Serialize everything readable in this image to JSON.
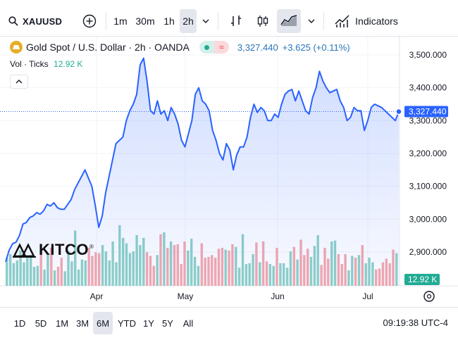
{
  "toolbar": {
    "symbol": "XAUUSD",
    "intervals": [
      "1m",
      "30m",
      "1h",
      "2h"
    ],
    "active_interval": "2h",
    "indicators_label": "Indicators"
  },
  "legend": {
    "title": "Gold Spot / U.S. Dollar · 2h · OANDA",
    "price": "3,327.440",
    "change": "+3.625 (+0.11%)"
  },
  "volume": {
    "label": "Vol · Ticks",
    "value": "12.92 K"
  },
  "logo_text": "KITCO",
  "ranges": [
    "1D",
    "5D",
    "1M",
    "3M",
    "6M",
    "YTD",
    "1Y",
    "5Y",
    "All"
  ],
  "active_range": "6M",
  "clock": "09:19:38 UTC-4",
  "colors": {
    "line": "#2962ff",
    "up_volume": "#8fd1c7",
    "down_volume": "#f6a8ae",
    "accent": "#2a74ba"
  },
  "chart_data": {
    "type": "area",
    "series": [
      {
        "values": [
          2870,
          2905,
          2925,
          2930,
          2950,
          2985,
          2990,
          3005,
          3010,
          3020,
          3015,
          3025,
          3045,
          3040,
          3050,
          3035,
          3030,
          3030,
          3045,
          3060,
          3090,
          3110,
          3130,
          3150,
          3125,
          3100,
          3040,
          2975,
          3010,
          3080,
          3130,
          3180,
          3230,
          3240,
          3250,
          3300,
          3330,
          3350,
          3380,
          3470,
          3490,
          3420,
          3330,
          3320,
          3360,
          3320,
          3330,
          3300,
          3340,
          3320,
          3290,
          3240,
          3220,
          3260,
          3300,
          3380,
          3400,
          3360,
          3350,
          3330,
          3270,
          3240,
          3200,
          3180,
          3230,
          3210,
          3150,
          3195,
          3220,
          3220,
          3250,
          3310,
          3350,
          3325,
          3340,
          3330,
          3300,
          3300,
          3320,
          3310,
          3350,
          3380,
          3390,
          3395,
          3360,
          3390,
          3360,
          3330,
          3320,
          3370,
          3400,
          3450,
          3420,
          3400,
          3385,
          3390,
          3395,
          3360,
          3340,
          3300,
          3310,
          3340,
          3330,
          3330,
          3270,
          3300,
          3340,
          3350,
          3345,
          3340,
          3330,
          3320,
          3310,
          3300,
          3327.44
        ]
      }
    ],
    "x_ticks": [
      "Apr",
      "May",
      "Jun",
      "Jul"
    ],
    "y_ticks": [
      "3,500.000",
      "3,400.000",
      "3,300.000",
      "3,200.000",
      "3,100.000",
      "3,000.000",
      "2,900.000"
    ],
    "ylim": [
      2860,
      3530
    ],
    "last_price": "3,327.440",
    "volume_label": "12.92 K",
    "volume_ticks_k": [
      3.1,
      3.5,
      2.5,
      2.8,
      3.9,
      2.6,
      3.2,
      3.4,
      2.1,
      2.2,
      3.9,
      1.8,
      3.6,
      4.2,
      1.7,
      2.1,
      3.1,
      1.6,
      3.9,
      2.7,
      6.1,
      1.8,
      2.9,
      2.8,
      4.2,
      3.3,
      3.7,
      3.6,
      4.5,
      3.8,
      2.8,
      4.9,
      2.6,
      6.7,
      5.3,
      4.7,
      3.6,
      3.8,
      5.6,
      4.5,
      5.3,
      3.7,
      3.3,
      2.2,
      3.4,
      5.7,
      5.9,
      4.2,
      4.9,
      4.5,
      4.6,
      2.4,
      4.9,
      3.9,
      5.2,
      3.2,
      2.2,
      4.7,
      3.1,
      3.2,
      3.4,
      3.1,
      4.1,
      4.2,
      4.0,
      3.9,
      4.6,
      4.3,
      2.0,
      5.7,
      2.4,
      2.5,
      3.5,
      4.8,
      2.6,
      4.9,
      2.7,
      2.4,
      2.2,
      4.2,
      2.5,
      2.5,
      2.0,
      3.8,
      4.3,
      2.9,
      5.1,
      3.4,
      4.1,
      3.2,
      4.4,
      5.6,
      2.3,
      4.2,
      3.0,
      4.9,
      5.0,
      3.5,
      2.4,
      3.5,
      1.7,
      3.3,
      3.1,
      3.4,
      4.5,
      2.5,
      3.1,
      2.6,
      1.8,
      1.9,
      2.6,
      3.0,
      2.5,
      4.0,
      3.6
    ]
  }
}
